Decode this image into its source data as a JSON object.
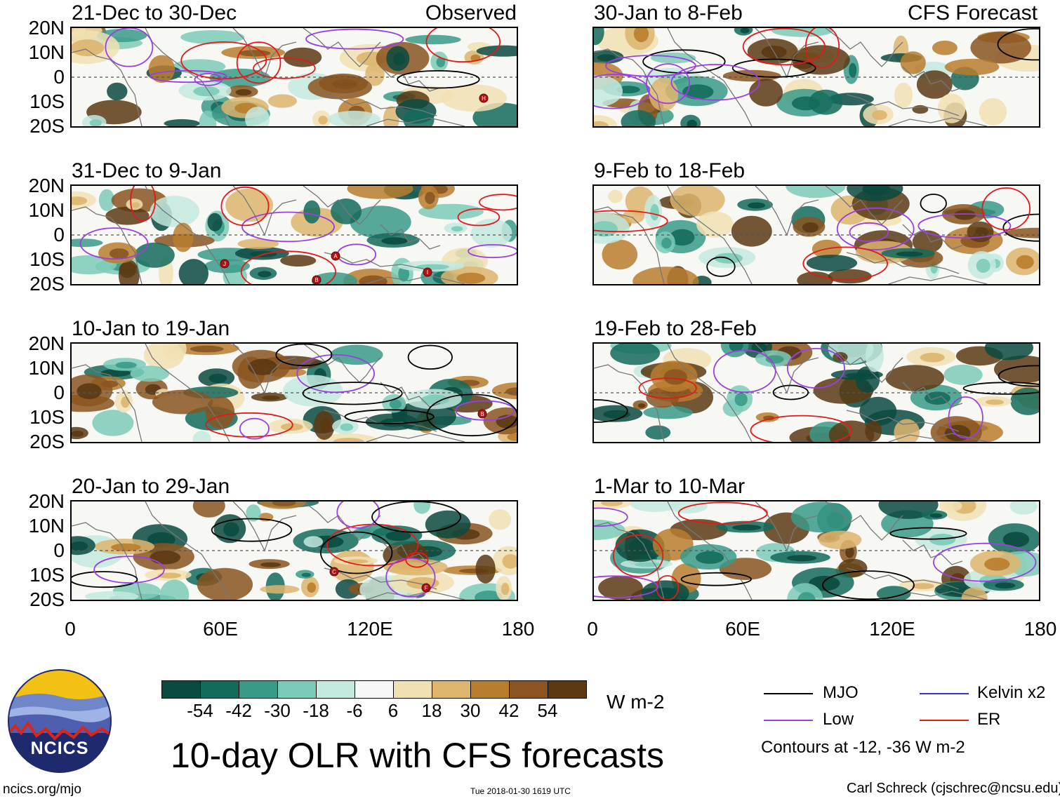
{
  "observed_label": "Observed",
  "forecast_label": "CFS Forecast",
  "lat_labels": [
    "20N",
    "10N",
    "0",
    "10S",
    "20S"
  ],
  "lon_labels": [
    "0",
    "60E",
    "120E",
    "180"
  ],
  "panels_observed": [
    {
      "period": "21-Dec to 30-Dec"
    },
    {
      "period": "31-Dec to 9-Jan"
    },
    {
      "period": "10-Jan to 19-Jan"
    },
    {
      "period": "20-Jan to 29-Jan"
    }
  ],
  "panels_forecast": [
    {
      "period": "30-Jan to 8-Feb"
    },
    {
      "period": "9-Feb to 18-Feb"
    },
    {
      "period": "19-Feb to 28-Feb"
    },
    {
      "period": "1-Mar to 10-Mar"
    }
  ],
  "colorbar": {
    "ticks": [
      "-54",
      "-42",
      "-30",
      "-18",
      "-6",
      "6",
      "18",
      "30",
      "42",
      "54"
    ],
    "units": "W m-2",
    "colors": [
      "#0b4a3f",
      "#136b5c",
      "#3a9a88",
      "#7ccbb8",
      "#c4e9df",
      "#f7f7f7",
      "#f1e0b3",
      "#ddb56e",
      "#b97d2e",
      "#8a5520",
      "#5b3913"
    ]
  },
  "main_title": "10-day OLR with CFS forecasts",
  "logo_text": "NCICS",
  "site": "ncics.org/mjo",
  "timestamp": "Tue 2018-01-30 1619 UTC",
  "author": "Carl Schreck (cjschrec@ncsu.edu)",
  "legend": {
    "items": [
      {
        "label": "MJO",
        "color": "#000000"
      },
      {
        "label": "Kelvin x2",
        "color": "#3a32d6"
      },
      {
        "label": "Low",
        "color": "#9b3fe0"
      },
      {
        "label": "ER",
        "color": "#e11a1a"
      }
    ],
    "note": "Contours at -12, -36 W m-2"
  },
  "storm_markers_observed": [
    {
      "panel": 0,
      "letter": "H"
    },
    {
      "panel": 1,
      "letter": "A"
    },
    {
      "panel": 1,
      "letter": "I"
    },
    {
      "panel": 1,
      "letter": "J"
    },
    {
      "panel": 1,
      "letter": "B"
    },
    {
      "panel": 2,
      "letter": "B"
    },
    {
      "panel": 3,
      "letter": "C"
    },
    {
      "panel": 3,
      "letter": "F"
    }
  ]
}
